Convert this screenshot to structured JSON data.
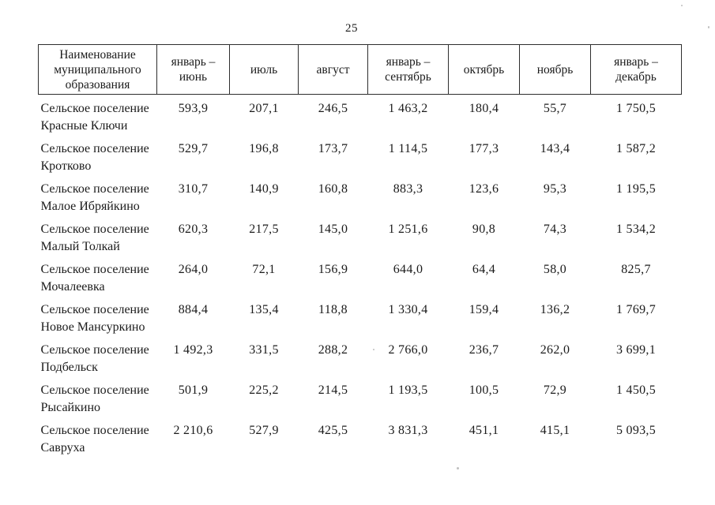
{
  "page": {
    "number": "25"
  },
  "table": {
    "header": {
      "columns": [
        {
          "lines": [
            "Наименование",
            "муниципального",
            "образования"
          ]
        },
        {
          "lines": [
            "январь –",
            "июнь"
          ]
        },
        {
          "lines": [
            "июль"
          ]
        },
        {
          "lines": [
            "август"
          ]
        },
        {
          "lines": [
            "январь –",
            "сентябрь"
          ]
        },
        {
          "lines": [
            "октябрь"
          ]
        },
        {
          "lines": [
            "ноябрь"
          ]
        },
        {
          "lines": [
            "январь –",
            "декабрь"
          ]
        }
      ]
    },
    "rows": [
      {
        "name_lines": [
          "Сельское поселение",
          "Красные Ключи"
        ],
        "values": [
          "593,9",
          "207,1",
          "246,5",
          "1 463,2",
          "180,4",
          "55,7",
          "1 750,5"
        ]
      },
      {
        "name_lines": [
          "Сельское поселение",
          "Кротково"
        ],
        "values": [
          "529,7",
          "196,8",
          "173,7",
          "1 114,5",
          "177,3",
          "143,4",
          "1 587,2"
        ]
      },
      {
        "name_lines": [
          "Сельское поселение",
          "Малое Ибряйкино"
        ],
        "values": [
          "310,7",
          "140,9",
          "160,8",
          "883,3",
          "123,6",
          "95,3",
          "1 195,5"
        ]
      },
      {
        "name_lines": [
          "Сельское поселение",
          "Малый Толкай"
        ],
        "values": [
          "620,3",
          "217,5",
          "145,0",
          "1 251,6",
          "90,8",
          "74,3",
          "1 534,2"
        ]
      },
      {
        "name_lines": [
          "Сельское поселение",
          "Мочалеевка"
        ],
        "values": [
          "264,0",
          "72,1",
          "156,9",
          "644,0",
          "64,4",
          "58,0",
          "825,7"
        ]
      },
      {
        "name_lines": [
          "Сельское поселение",
          "Новое Мансуркино"
        ],
        "values": [
          "884,4",
          "135,4",
          "118,8",
          "1 330,4",
          "159,4",
          "136,2",
          "1 769,7"
        ]
      },
      {
        "name_lines": [
          "Сельское поселение",
          "Подбельск"
        ],
        "values": [
          "1 492,3",
          "331,5",
          "288,2",
          "2 766,0",
          "236,7",
          "262,0",
          "3 699,1"
        ]
      },
      {
        "name_lines": [
          "Сельское поселение",
          "Рысайкино"
        ],
        "values": [
          "501,9",
          "225,2",
          "214,5",
          "1 193,5",
          "100,5",
          "72,9",
          "1 450,5"
        ]
      },
      {
        "name_lines": [
          "Сельское поселение",
          "Савруха"
        ],
        "values": [
          "2 210,6",
          "527,9",
          "425,5",
          "3 831,3",
          "451,1",
          "415,1",
          "5 093,5"
        ]
      }
    ]
  }
}
